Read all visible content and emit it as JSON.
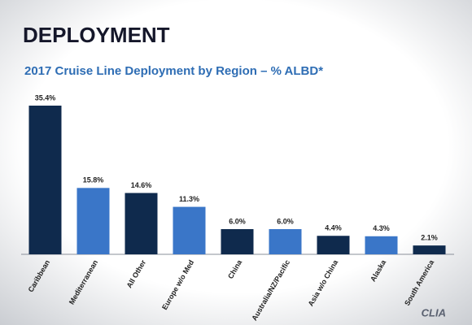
{
  "chart_data": {
    "type": "bar",
    "title": "DEPLOYMENT",
    "subtitle": "2017 Cruise Line Deployment by Region – % ALBD*",
    "categories": [
      "Caribbean",
      "Mediterranean",
      "All Other",
      "Europe w/o Med",
      "China",
      "Australia/NZ/Pacific",
      "Asia w/o China",
      "Alaska",
      "South America"
    ],
    "values": [
      35.4,
      15.8,
      14.6,
      11.3,
      6.0,
      6.0,
      4.4,
      4.3,
      2.1
    ],
    "value_labels": [
      "35.4%",
      "15.8%",
      "14.6%",
      "11.3%",
      "6.0%",
      "6.0%",
      "4.4%",
      "4.3%",
      "2.1%"
    ],
    "colors": [
      "#0f2a4d",
      "#3a76c8",
      "#0f2a4d",
      "#3a76c8",
      "#0f2a4d",
      "#3a76c8",
      "#0f2a4d",
      "#3a76c8",
      "#0f2a4d"
    ],
    "logo": "CLIA"
  }
}
